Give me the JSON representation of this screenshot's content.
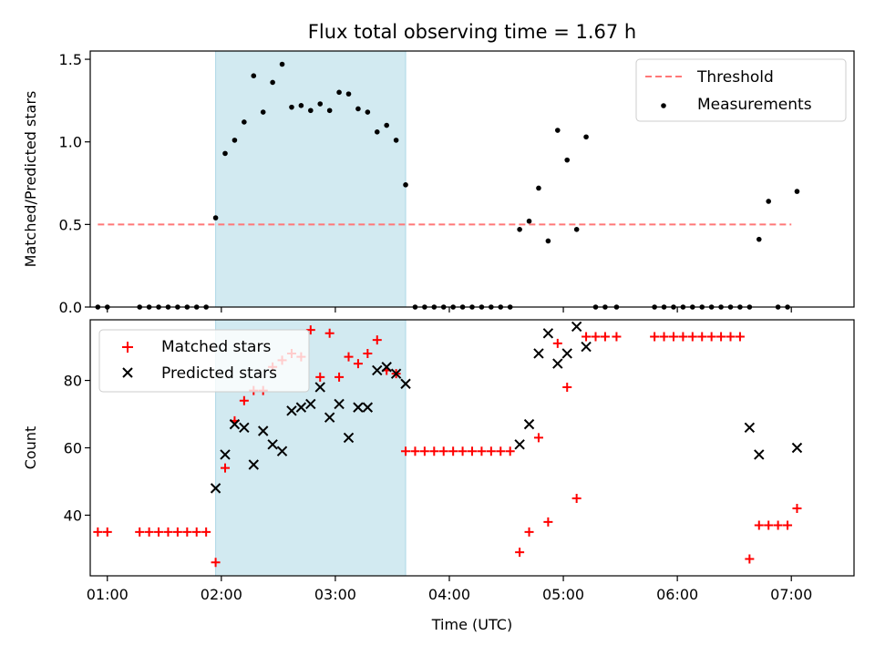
{
  "title": "Flux total observing time = 1.67 h",
  "colors": {
    "threshold": "#ff7777",
    "measurements": "#000000",
    "matched": "#ff0000",
    "predicted": "#000000",
    "span_fill": "#add8e6"
  },
  "chart_data": [
    {
      "type": "scatter",
      "ylabel": "Matched/Predicted stars",
      "xlabel": "",
      "xlim": [
        "00:51",
        "07:33"
      ],
      "ylim": [
        0,
        1.55
      ],
      "yticks": [
        0.0,
        0.5,
        1.0,
        1.5
      ],
      "ytick_labels": [
        "0.0",
        "0.5",
        "1.0",
        "1.5"
      ],
      "shaded_span": [
        "01:57",
        "03:37"
      ],
      "legend_position": "top-right",
      "series": [
        {
          "name": "Threshold",
          "kind": "dashed-line",
          "x": [
            "00:55",
            "07:00"
          ],
          "y": [
            0.5,
            0.5
          ]
        },
        {
          "name": "Measurements",
          "kind": "dot",
          "x": [
            "00:55",
            "01:00",
            "01:17",
            "01:22",
            "01:27",
            "01:32",
            "01:37",
            "01:42",
            "01:47",
            "01:52",
            "01:57",
            "02:02",
            "02:07",
            "02:12",
            "02:17",
            "02:22",
            "02:27",
            "02:32",
            "02:37",
            "02:42",
            "02:47",
            "02:52",
            "02:57",
            "03:02",
            "03:07",
            "03:12",
            "03:17",
            "03:22",
            "03:27",
            "03:32",
            "03:37",
            "03:42",
            "03:47",
            "03:52",
            "03:57",
            "04:02",
            "04:07",
            "04:12",
            "04:17",
            "04:22",
            "04:27",
            "04:32",
            "04:37",
            "04:42",
            "04:47",
            "04:52",
            "04:57",
            "05:02",
            "05:07",
            "05:12",
            "05:17",
            "05:22",
            "05:28",
            "05:48",
            "05:53",
            "05:58",
            "06:03",
            "06:08",
            "06:13",
            "06:18",
            "06:23",
            "06:28",
            "06:33",
            "06:38",
            "06:43",
            "06:48",
            "06:53",
            "06:58",
            "07:03"
          ],
          "y": [
            0,
            0,
            0,
            0,
            0,
            0,
            0,
            0,
            0,
            0,
            0.54,
            0.93,
            1.01,
            1.12,
            1.4,
            1.18,
            1.36,
            1.47,
            1.21,
            1.22,
            1.19,
            1.23,
            1.19,
            1.3,
            1.29,
            1.2,
            1.18,
            1.06,
            1.1,
            1.01,
            0.74,
            0,
            0,
            0,
            0,
            0,
            0,
            0,
            0,
            0,
            0,
            0,
            0.47,
            0.52,
            0.72,
            0.4,
            1.07,
            0.89,
            0.47,
            1.03,
            0,
            0,
            0,
            0,
            0,
            0,
            0,
            0,
            0,
            0,
            0,
            0,
            0,
            0,
            0.41,
            0.64,
            0,
            0,
            0.7
          ]
        }
      ]
    },
    {
      "type": "scatter",
      "ylabel": "Count",
      "xlabel": "Time (UTC)",
      "xlim": [
        "00:51",
        "07:33"
      ],
      "ylim": [
        22,
        98
      ],
      "yticks": [
        40,
        60,
        80
      ],
      "ytick_labels": [
        "40",
        "60",
        "80"
      ],
      "xticks": [
        "01:00",
        "02:00",
        "03:00",
        "04:00",
        "05:00",
        "06:00",
        "07:00"
      ],
      "shaded_span": [
        "01:57",
        "03:37"
      ],
      "legend_position": "top-left",
      "series": [
        {
          "name": "Matched stars",
          "kind": "plus",
          "x": [
            "00:55",
            "01:00",
            "01:17",
            "01:22",
            "01:27",
            "01:32",
            "01:37",
            "01:42",
            "01:47",
            "01:52",
            "01:57",
            "02:02",
            "02:07",
            "02:12",
            "02:17",
            "02:22",
            "02:27",
            "02:32",
            "02:37",
            "02:42",
            "02:47",
            "02:52",
            "02:57",
            "03:02",
            "03:07",
            "03:12",
            "03:17",
            "03:22",
            "03:27",
            "03:32",
            "03:37",
            "03:42",
            "03:47",
            "03:52",
            "03:57",
            "04:02",
            "04:07",
            "04:12",
            "04:17",
            "04:22",
            "04:27",
            "04:32",
            "04:37",
            "04:42",
            "04:47",
            "04:52",
            "04:57",
            "05:02",
            "05:07",
            "05:12",
            "05:17",
            "05:22",
            "05:28",
            "05:48",
            "05:53",
            "05:58",
            "06:03",
            "06:08",
            "06:13",
            "06:18",
            "06:23",
            "06:28",
            "06:33",
            "06:38",
            "06:43",
            "06:48",
            "06:53",
            "06:58",
            "07:03"
          ],
          "y": [
            35,
            35,
            35,
            35,
            35,
            35,
            35,
            35,
            35,
            35,
            26,
            54,
            68,
            74,
            77,
            77,
            84,
            86,
            88,
            87,
            95,
            81,
            94,
            81,
            87,
            85,
            88,
            92,
            83,
            82,
            59,
            59,
            59,
            59,
            59,
            59,
            59,
            59,
            59,
            59,
            59,
            59,
            29,
            35,
            63,
            38,
            91,
            78,
            45,
            93,
            93,
            93,
            93,
            93,
            93,
            93,
            93,
            93,
            93,
            93,
            93,
            93,
            93,
            27,
            37,
            37,
            37,
            37,
            42
          ]
        },
        {
          "name": "Predicted stars",
          "kind": "x",
          "x": [
            "01:57",
            "02:02",
            "02:07",
            "02:12",
            "02:17",
            "02:22",
            "02:27",
            "02:32",
            "02:37",
            "02:42",
            "02:47",
            "02:52",
            "02:57",
            "03:02",
            "03:07",
            "03:12",
            "03:17",
            "03:22",
            "03:27",
            "03:32",
            "03:37",
            "04:37",
            "04:42",
            "04:47",
            "04:52",
            "04:57",
            "05:02",
            "05:07",
            "05:12",
            "06:38",
            "06:43",
            "07:03"
          ],
          "y": [
            48,
            58,
            67,
            66,
            55,
            65,
            61,
            59,
            71,
            72,
            73,
            78,
            69,
            73,
            63,
            72,
            72,
            83,
            84,
            82,
            79,
            61,
            67,
            88,
            94,
            85,
            88,
            96,
            90,
            66,
            58,
            60
          ]
        }
      ]
    }
  ]
}
